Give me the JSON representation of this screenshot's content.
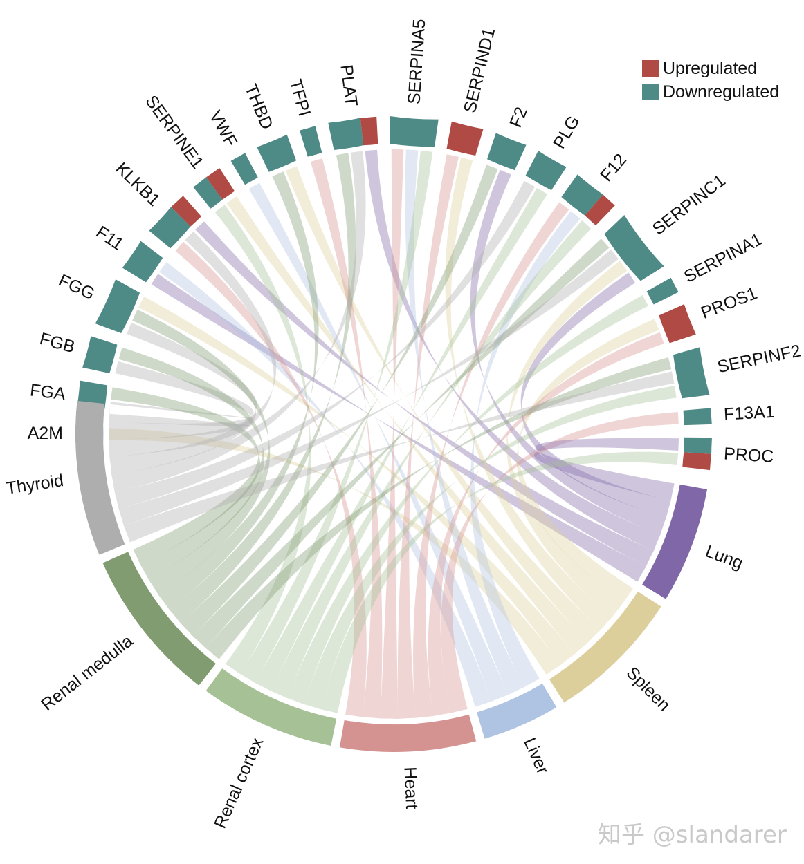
{
  "chart_data": {
    "type": "chord",
    "title": "",
    "legend": {
      "placement": "top-right",
      "entries": [
        {
          "name": "Upregulated",
          "color": "#b04a45"
        },
        {
          "name": "Downregulated",
          "color": "#4e8a86"
        }
      ]
    },
    "genes": [
      {
        "name": "A2M",
        "up": 0,
        "down": 1,
        "targets": [
          "Spleen"
        ]
      },
      {
        "name": "FGA",
        "up": 0,
        "down": 2,
        "targets": [
          "Thyroid",
          "Renal medulla"
        ]
      },
      {
        "name": "FGB",
        "up": 0,
        "down": 2,
        "targets": [
          "Thyroid",
          "Renal medulla"
        ]
      },
      {
        "name": "FGG",
        "up": 0,
        "down": 3,
        "targets": [
          "Thyroid",
          "Renal medulla",
          "Spleen"
        ]
      },
      {
        "name": "F11",
        "up": 0,
        "down": 2,
        "targets": [
          "Lung",
          "Liver"
        ]
      },
      {
        "name": "KLKB1",
        "up": 1,
        "down": 2,
        "targets": [
          "Heart",
          "Thyroid",
          "Lung"
        ]
      },
      {
        "name": "SERPINE1",
        "up": 1,
        "down": 1,
        "targets": [
          "Renal cortex",
          "Spleen"
        ]
      },
      {
        "name": "VWF",
        "up": 0,
        "down": 1,
        "targets": [
          "Liver"
        ]
      },
      {
        "name": "THBD",
        "up": 0,
        "down": 2,
        "targets": [
          "Renal medulla",
          "Spleen"
        ]
      },
      {
        "name": "TFPI",
        "up": 0,
        "down": 1,
        "targets": [
          "Heart"
        ]
      },
      {
        "name": "PLAT",
        "up": 1,
        "down": 2,
        "targets": [
          "Renal medulla",
          "Thyroid",
          "Lung"
        ]
      },
      {
        "name": "SERPINA5",
        "up": 0,
        "down": 3,
        "targets": [
          "Heart",
          "Liver",
          "Renal cortex"
        ]
      },
      {
        "name": "SERPIND1",
        "up": 2,
        "down": 0,
        "targets": [
          "Heart",
          "Spleen"
        ]
      },
      {
        "name": "F2",
        "up": 0,
        "down": 2,
        "targets": [
          "Renal medulla",
          "Lung"
        ]
      },
      {
        "name": "PLG",
        "up": 0,
        "down": 2,
        "targets": [
          "Thyroid",
          "Renal cortex"
        ]
      },
      {
        "name": "F12",
        "up": 1,
        "down": 2,
        "targets": [
          "Heart",
          "Liver",
          "Renal cortex"
        ]
      },
      {
        "name": "SERPINC1",
        "up": 0,
        "down": 4,
        "targets": [
          "Renal medulla",
          "Thyroid",
          "Spleen",
          "Lung"
        ]
      },
      {
        "name": "SERPINA1",
        "up": 0,
        "down": 1,
        "targets": [
          "Renal cortex"
        ]
      },
      {
        "name": "PROS1",
        "up": 2,
        "down": 0,
        "targets": [
          "Spleen",
          "Heart"
        ]
      },
      {
        "name": "SERPINF2",
        "up": 0,
        "down": 3,
        "targets": [
          "Renal medulla",
          "Thyroid",
          "Renal cortex"
        ]
      },
      {
        "name": "F13A1",
        "up": 0,
        "down": 1,
        "targets": [
          "Heart"
        ]
      },
      {
        "name": "PROC",
        "up": 1,
        "down": 1,
        "targets": [
          "Lung",
          "Renal cortex"
        ]
      }
    ],
    "tissues": [
      {
        "name": "Thyroid",
        "color": "#aeaeae"
      },
      {
        "name": "Renal medulla",
        "color": "#829c71"
      },
      {
        "name": "Renal cortex",
        "color": "#a5c195"
      },
      {
        "name": "Heart",
        "color": "#d49290"
      },
      {
        "name": "Liver",
        "color": "#afc3e3"
      },
      {
        "name": "Spleen",
        "color": "#dccf9c"
      },
      {
        "name": "Lung",
        "color": "#8068a8"
      }
    ]
  },
  "watermark": "知乎 @slandarer"
}
